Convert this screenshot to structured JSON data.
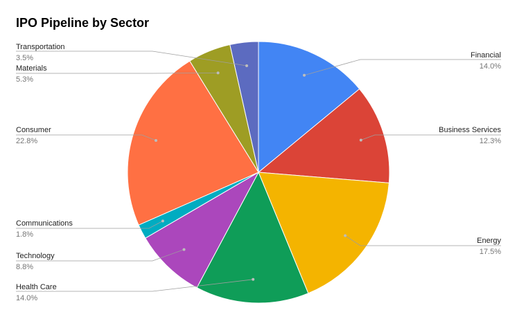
{
  "chart_data": {
    "type": "pie",
    "title": "IPO Pipeline by Sector",
    "slices": [
      {
        "label": "Financial",
        "value": 14.0,
        "pct_text": "14.0%",
        "color": "#4285F4",
        "side": "right"
      },
      {
        "label": "Business Services",
        "value": 12.3,
        "pct_text": "12.3%",
        "color": "#DB4437",
        "side": "right"
      },
      {
        "label": "Energy",
        "value": 17.5,
        "pct_text": "17.5%",
        "color": "#F4B400",
        "side": "right"
      },
      {
        "label": "Health Care",
        "value": 14.0,
        "pct_text": "14.0%",
        "color": "#0F9D58",
        "side": "left"
      },
      {
        "label": "Technology",
        "value": 8.8,
        "pct_text": "8.8%",
        "color": "#AB47BC",
        "side": "left"
      },
      {
        "label": "Communications",
        "value": 1.8,
        "pct_text": "1.8%",
        "color": "#00ACC1",
        "side": "left"
      },
      {
        "label": "Consumer",
        "value": 22.8,
        "pct_text": "22.8%",
        "color": "#FF7043",
        "side": "left"
      },
      {
        "label": "Materials",
        "value": 5.3,
        "pct_text": "5.3%",
        "color": "#9E9D24",
        "side": "left"
      },
      {
        "label": "Transportation",
        "value": 3.5,
        "pct_text": "3.5%",
        "color": "#5C6BC0",
        "side": "left"
      }
    ],
    "legend": "labeled-slices"
  }
}
